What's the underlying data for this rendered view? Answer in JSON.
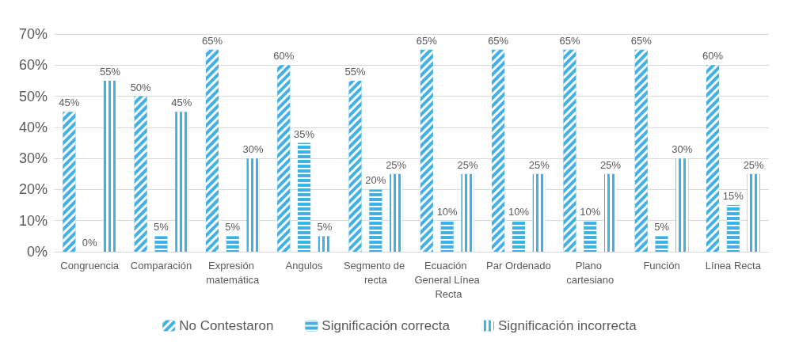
{
  "chart_data": {
    "type": "bar",
    "categories": [
      "Congruencia",
      "Comparación",
      "Expresión matemática",
      "Angulos",
      "Segmento de recta",
      "Ecuación General Línea Recta",
      "Par Ordenado",
      "Plano cartesiano",
      "Función",
      "Línea Recta"
    ],
    "series": [
      {
        "name": "No Contestaron",
        "color": "#41b0e4",
        "values": [
          45,
          50,
          65,
          60,
          55,
          65,
          65,
          65,
          65,
          60
        ],
        "value_labels": [
          "45%",
          "50%",
          "65%",
          "60%",
          "55%",
          "65%",
          "65%",
          "65%",
          "65%",
          "60%"
        ]
      },
      {
        "name": "Significación correcta",
        "color": "#41b0e4",
        "values": [
          0,
          5,
          5,
          35,
          20,
          10,
          10,
          10,
          5,
          15
        ],
        "value_labels": [
          "0%",
          "5%",
          "5%",
          "35%",
          "20%",
          "10%",
          "10%",
          "10%",
          "5%",
          "15%"
        ]
      },
      {
        "name": "Significación incorrecta",
        "color": "#41b0e4",
        "values": [
          55,
          45,
          30,
          5,
          25,
          25,
          25,
          25,
          30,
          25
        ],
        "value_labels": [
          "55%",
          "45%",
          "30%",
          "5%",
          "25%",
          "25%",
          "25%",
          "25%",
          "30%",
          "25%"
        ]
      }
    ],
    "ylim": [
      0,
      70
    ],
    "yticks": [
      {
        "value": 0,
        "label": "0%"
      },
      {
        "value": 10,
        "label": "10%"
      },
      {
        "value": 20,
        "label": "20%"
      },
      {
        "value": 30,
        "label": "30%"
      },
      {
        "value": 40,
        "label": "40%"
      },
      {
        "value": 50,
        "label": "50%"
      },
      {
        "value": 60,
        "label": "60%"
      },
      {
        "value": 70,
        "label": "70%"
      }
    ],
    "grid": "y",
    "legend": "bottom"
  }
}
